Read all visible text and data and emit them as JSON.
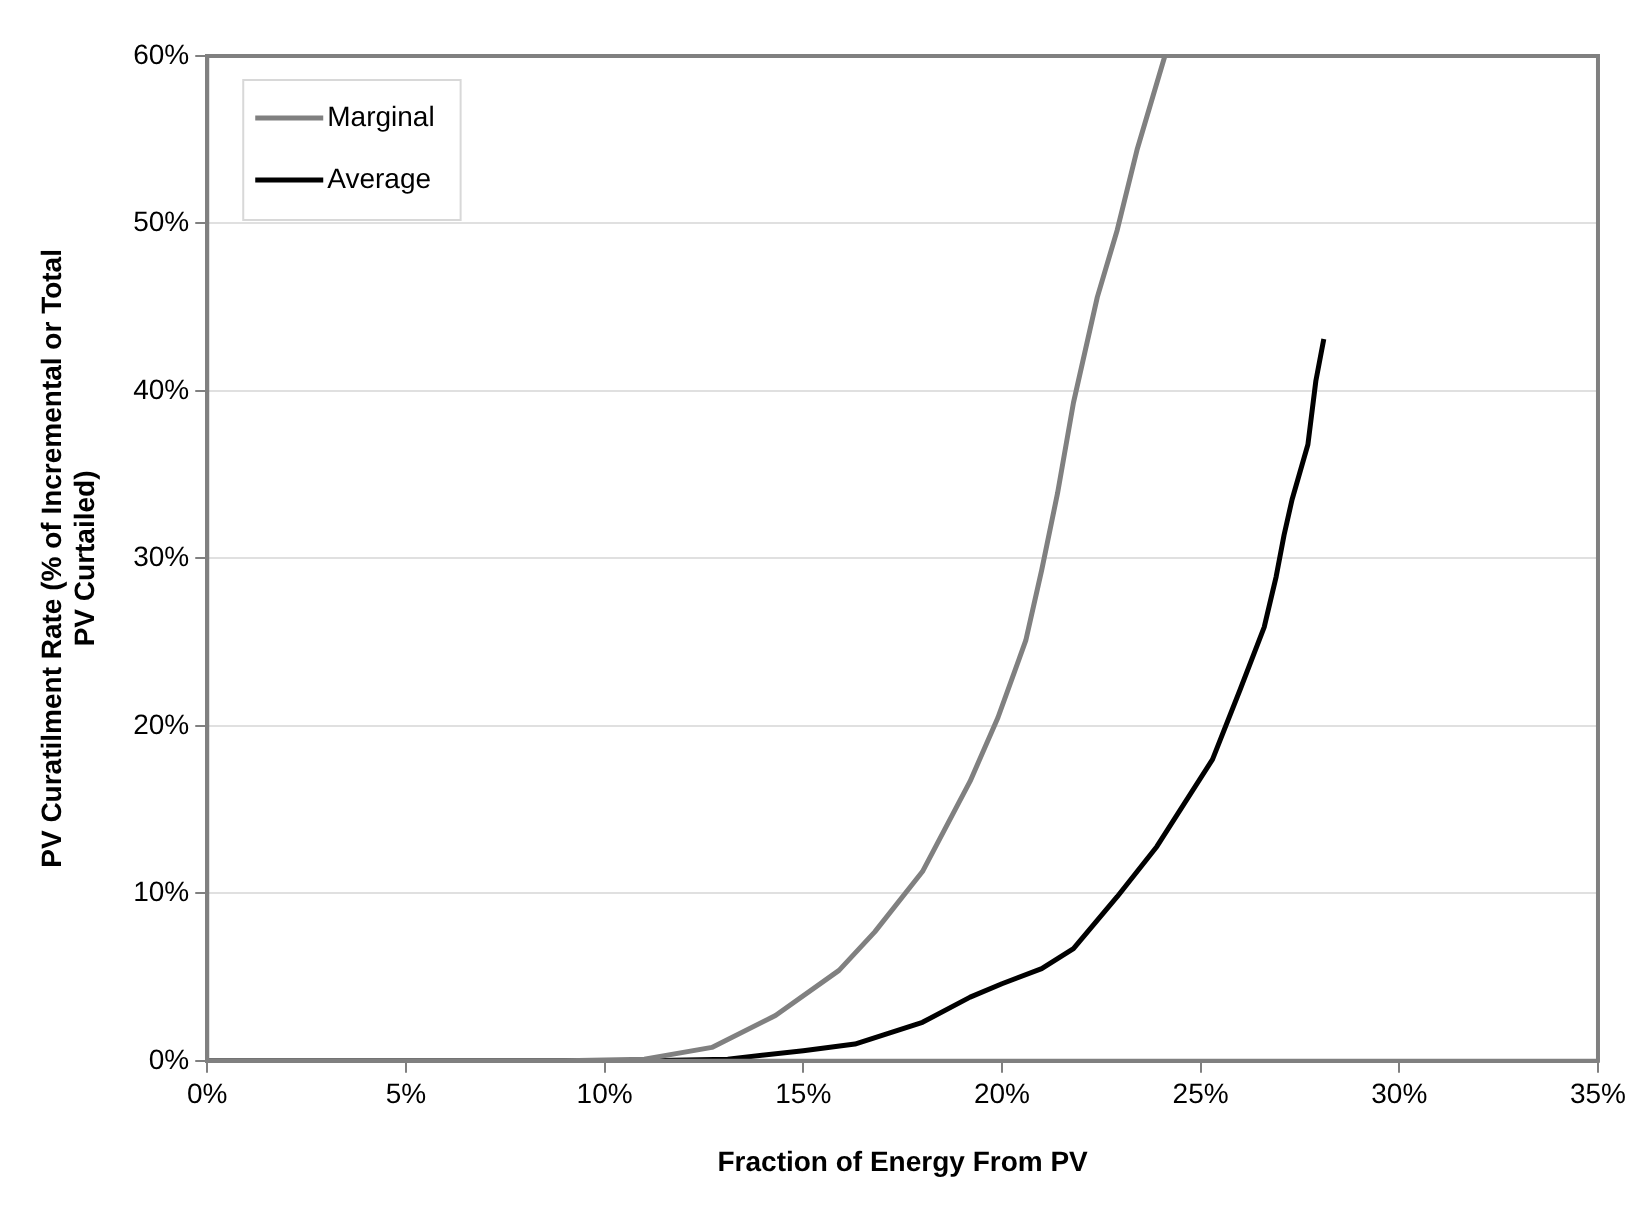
{
  "chart_data": {
    "type": "line",
    "xlabel": "Fraction of Energy From PV",
    "ylabel": "PV Curatilment Rate (% of Incremental or Total PV Curtailed)",
    "xlim": [
      0,
      35
    ],
    "xticks": [
      {
        "value": 0,
        "label": "0%"
      },
      {
        "value": 5,
        "label": "5%"
      },
      {
        "value": 10,
        "label": "10%"
      },
      {
        "value": 15,
        "label": "15%"
      },
      {
        "value": 20,
        "label": "20%"
      },
      {
        "value": 25,
        "label": "25%"
      },
      {
        "value": 30,
        "label": "30%"
      },
      {
        "value": 35,
        "label": "35%"
      }
    ],
    "ylim": [
      0,
      60
    ],
    "yticks": [
      {
        "value": 0,
        "label": "0%"
      },
      {
        "value": 10,
        "label": "10%"
      },
      {
        "value": 20,
        "label": "20%"
      },
      {
        "value": 30,
        "label": "30%"
      },
      {
        "value": 40,
        "label": "40%"
      },
      {
        "value": 50,
        "label": "50%"
      },
      {
        "value": 60,
        "label": "60%"
      }
    ],
    "grid": "y",
    "legend": "top left",
    "marker": "none",
    "line_style": "solid",
    "series": [
      {
        "name": "Marginal",
        "color": "#808080",
        "x": [
          0,
          9,
          11,
          12.7,
          14.3,
          15.9,
          16.8,
          18,
          19.2,
          19.9,
          20.6,
          21,
          21.4,
          21.8,
          22.4,
          22.9,
          23.4,
          24.1
        ],
        "values": [
          0,
          0,
          0.1,
          0.8,
          2.7,
          5.4,
          7.7,
          11.3,
          16.7,
          20.5,
          25.1,
          29.3,
          33.9,
          39.3,
          45.6,
          49.6,
          54.4,
          60
        ]
      },
      {
        "name": "Average",
        "color": "#000000",
        "x": [
          0,
          11,
          13.1,
          15,
          16.3,
          18,
          19.2,
          20,
          21,
          21.8,
          22.9,
          23.9,
          25.3,
          26,
          26.6,
          26.9,
          27.1,
          27.3,
          27.7,
          27.9,
          28.1
        ],
        "values": [
          0,
          0,
          0.1,
          0.6,
          1,
          2.3,
          3.8,
          4.6,
          5.5,
          6.7,
          9.8,
          12.8,
          18,
          22.2,
          25.9,
          28.9,
          31.4,
          33.5,
          36.8,
          40.6,
          43.1
        ]
      }
    ]
  }
}
